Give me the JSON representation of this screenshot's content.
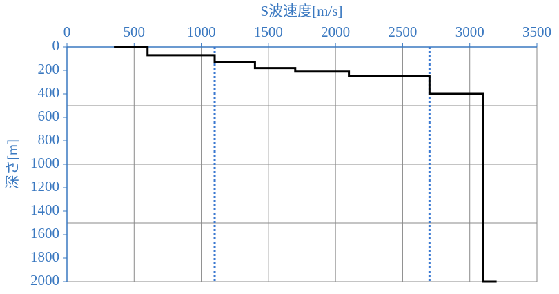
{
  "chart_data": {
    "type": "line",
    "xlabel": "S波速度[m/s]",
    "ylabel": "深さ[m]",
    "xlim": [
      0,
      3500
    ],
    "xticks": [
      0,
      500,
      1000,
      1500,
      2000,
      2500,
      3000,
      3500
    ],
    "ylim": [
      0,
      2000
    ],
    "yticks": [
      0,
      200,
      400,
      600,
      800,
      1000,
      1200,
      1400,
      1600,
      1800,
      2000
    ],
    "ygrid": [
      500,
      1000,
      1500,
      2000
    ],
    "y_inverted": true,
    "x_axis_position": "top",
    "grid": true,
    "series": [
      {
        "color": "#000000",
        "x": [
          350,
          600,
          600,
          1100,
          1100,
          1400,
          1400,
          1700,
          1700,
          2100,
          2100,
          2700,
          2700,
          3100,
          3100,
          3200
        ],
        "values": [
          0,
          0,
          70,
          70,
          130,
          130,
          180,
          180,
          210,
          210,
          250,
          250,
          400,
          400,
          2000,
          2000
        ]
      }
    ],
    "reference_lines": {
      "color": "#3a78d0",
      "x": [
        1100,
        2700
      ]
    }
  }
}
